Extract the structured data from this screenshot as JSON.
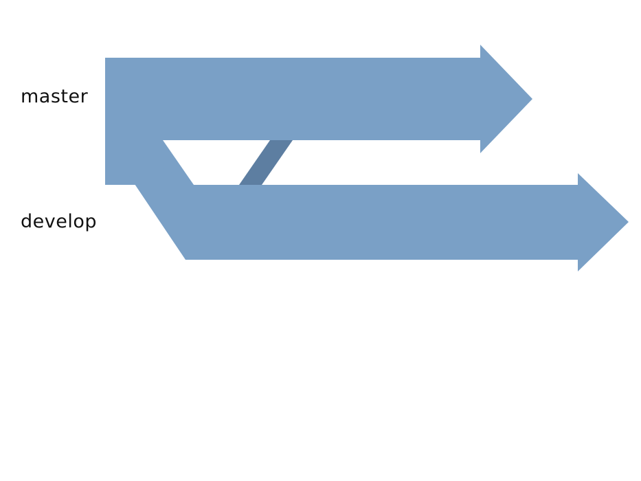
{
  "branches": {
    "master": {
      "label": "master"
    },
    "develop": {
      "label": "develop"
    }
  },
  "colors": {
    "arrow_fill": "#7aa0c6",
    "connector_fill": "#5d7ea1",
    "label_text": "#111111",
    "background": "#ffffff"
  }
}
